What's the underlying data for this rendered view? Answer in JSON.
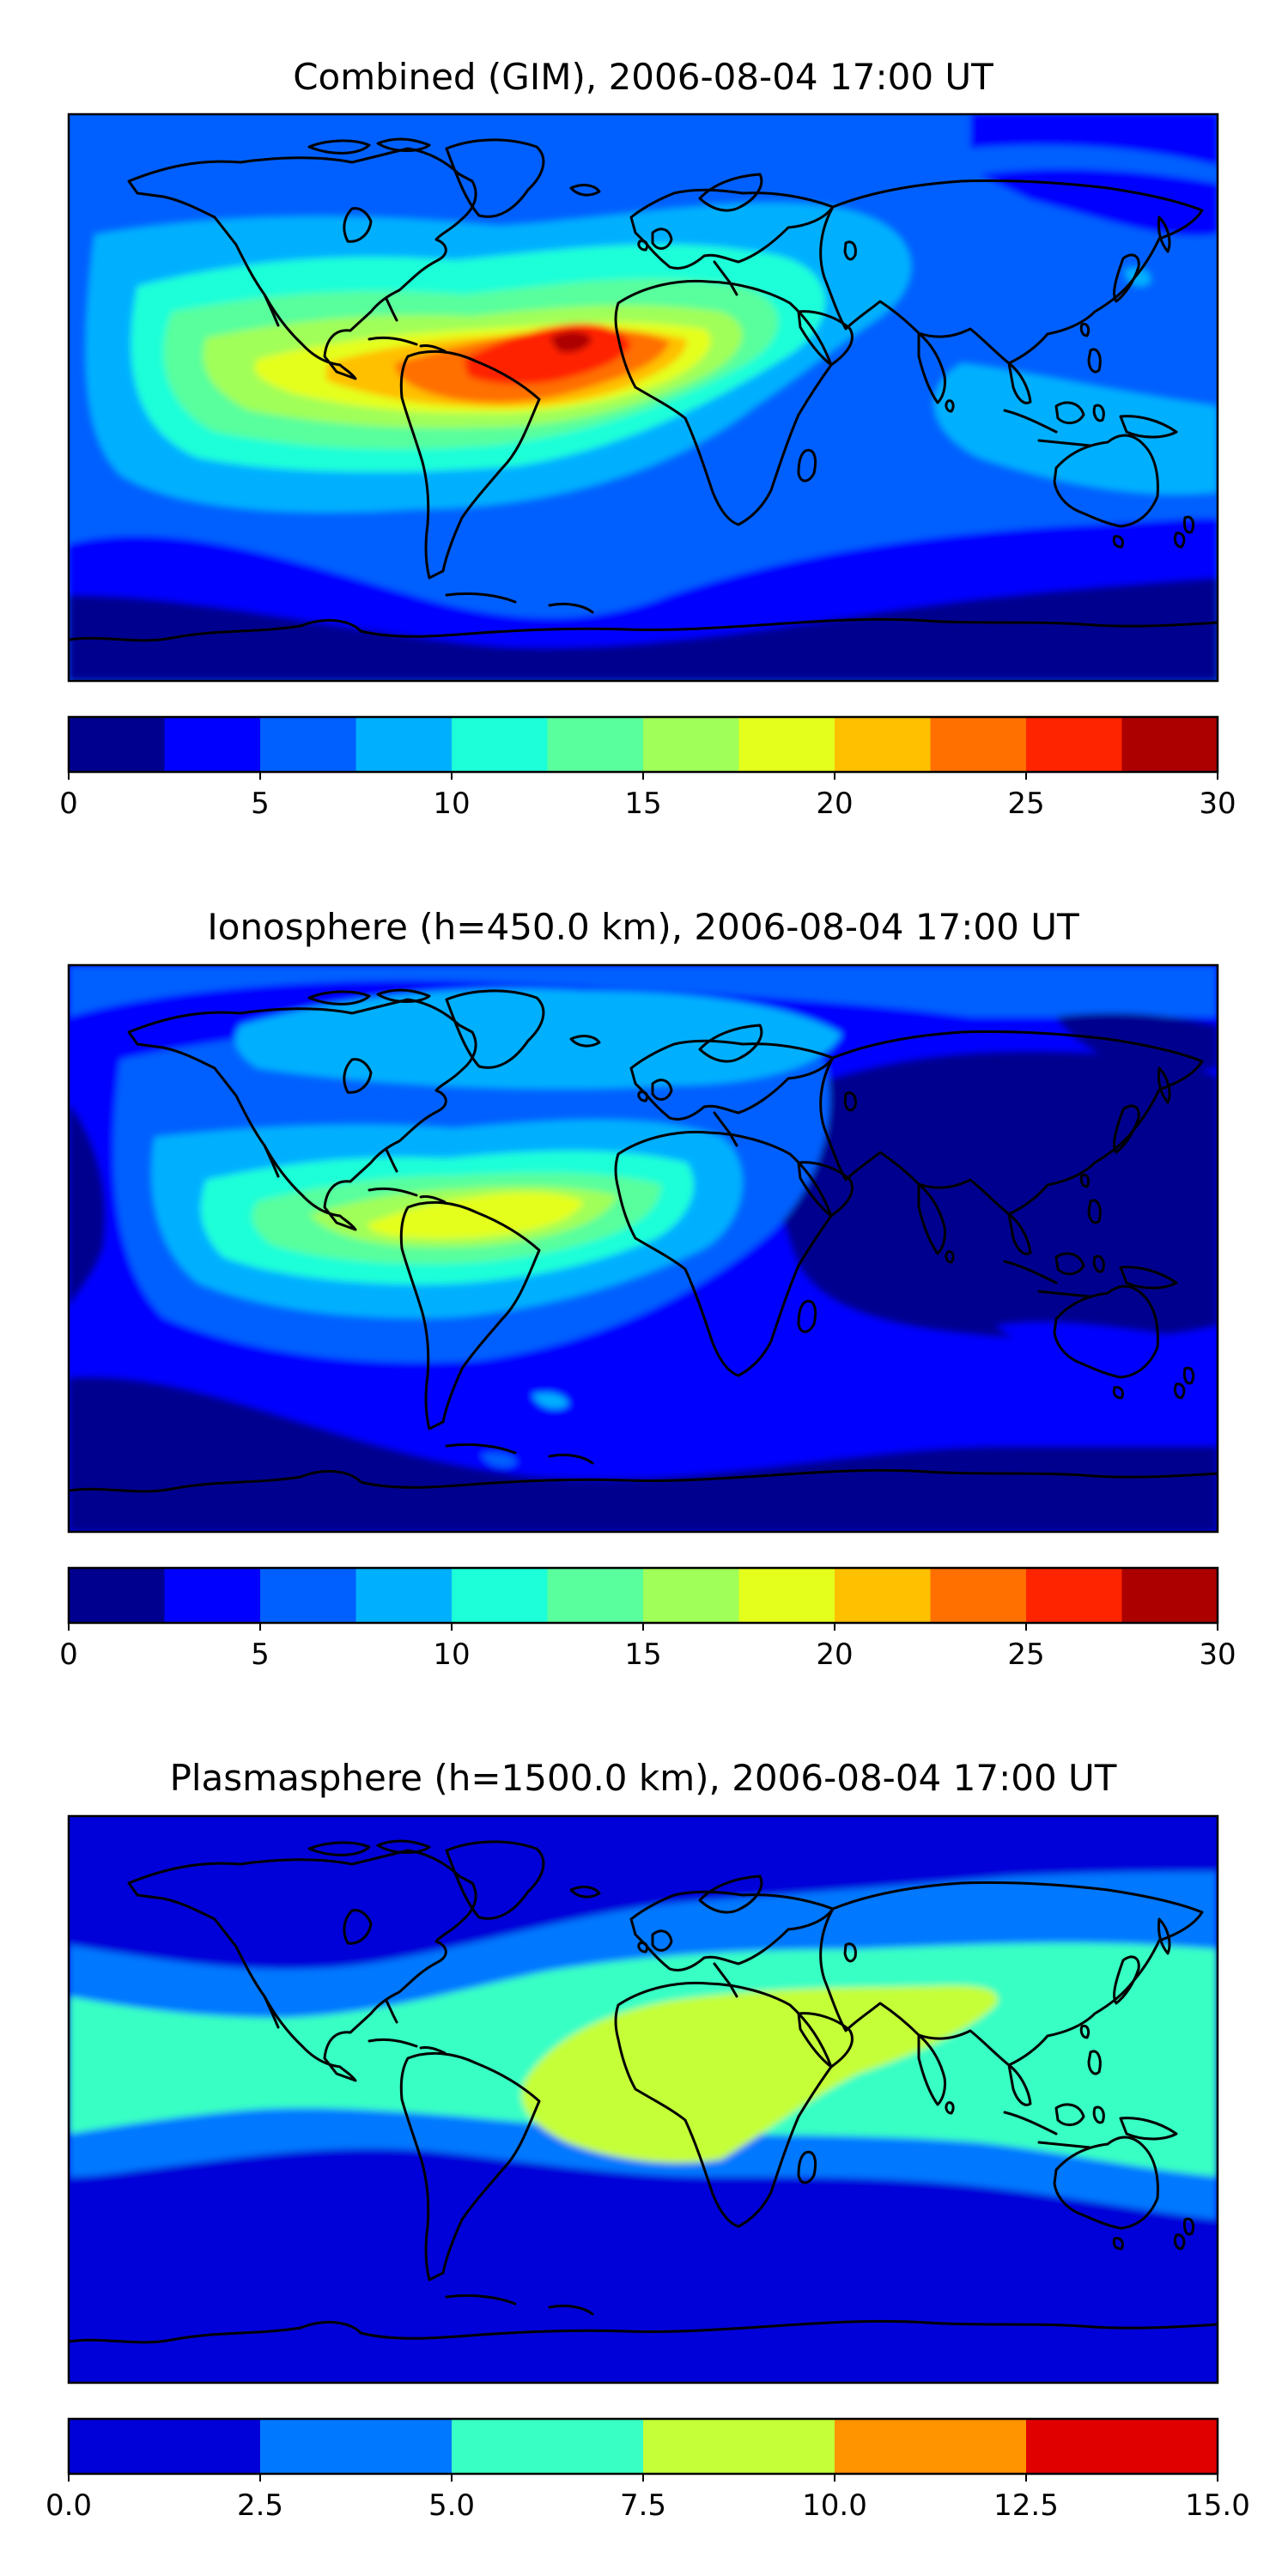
{
  "panels": [
    {
      "title": "Combined (GIM), 2006-08-04 17:00 UT",
      "map_type": "global TEC contour map",
      "colorbar": {
        "min": 0,
        "max": 30,
        "tick_labels": [
          "0",
          "5",
          "10",
          "15",
          "20",
          "25",
          "30"
        ],
        "colors": [
          "#00008f",
          "#0000ff",
          "#0060ff",
          "#00b0ff",
          "#1cffd8",
          "#58ff9c",
          "#a0ff58",
          "#e4ff1c",
          "#ffc000",
          "#ff7000",
          "#ff2400",
          "#ac0000"
        ]
      }
    },
    {
      "title": "Ionosphere  (h=450.0 km), 2006-08-04 17:00 UT",
      "map_type": "global TEC contour map",
      "colorbar": {
        "min": 0,
        "max": 30,
        "tick_labels": [
          "0",
          "5",
          "10",
          "15",
          "20",
          "25",
          "30"
        ],
        "colors": [
          "#00008f",
          "#0000ff",
          "#0060ff",
          "#00b0ff",
          "#1cffd8",
          "#58ff9c",
          "#a0ff58",
          "#e4ff1c",
          "#ffc000",
          "#ff7000",
          "#ff2400",
          "#ac0000"
        ]
      }
    },
    {
      "title": "Plasmasphere (h=1500.0 km), 2006-08-04 17:00 UT",
      "map_type": "global TEC contour map",
      "colorbar": {
        "min": 0.0,
        "max": 15.0,
        "tick_labels": [
          "0.0",
          "2.5",
          "5.0",
          "7.5",
          "10.0",
          "12.5",
          "15.0"
        ],
        "colors": [
          "#0000d8",
          "#0078ff",
          "#38ffc4",
          "#c4ff38",
          "#ff9400",
          "#e00000"
        ]
      }
    }
  ],
  "colors": {
    "coastline": "#000000",
    "frame": "#000000"
  }
}
